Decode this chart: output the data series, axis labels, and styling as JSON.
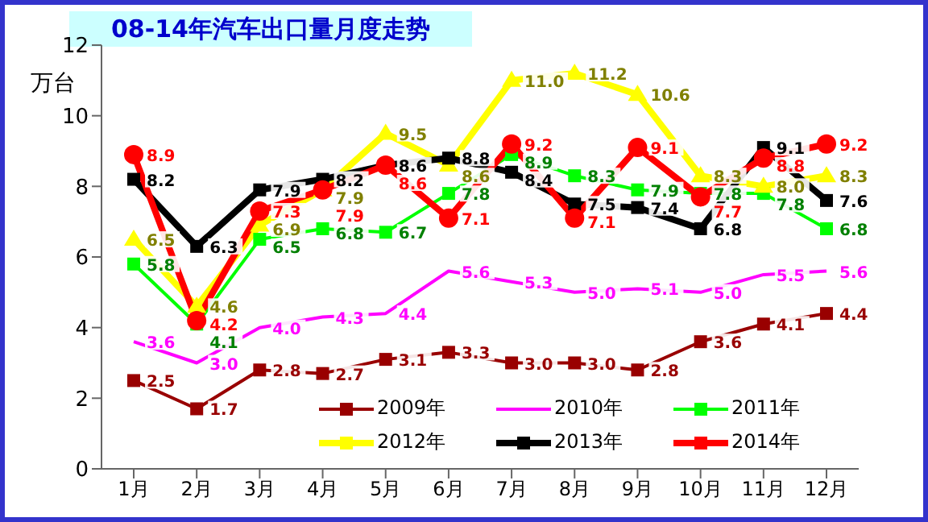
{
  "chart_data": {
    "type": "line",
    "title": "08-14年汽车出口量月度走势",
    "ylabel": "万台",
    "categories": [
      "1月",
      "2月",
      "3月",
      "4月",
      "5月",
      "6月",
      "7月",
      "8月",
      "9月",
      "10月",
      "11月",
      "12月"
    ],
    "series": [
      {
        "name": "2009年",
        "color": "#990000",
        "marker": "square",
        "values": [
          2.5,
          1.7,
          2.8,
          2.7,
          3.1,
          3.3,
          3.0,
          3.0,
          2.8,
          3.6,
          4.1,
          4.4
        ],
        "value_labels": [
          "2.5",
          "1.7",
          "2.8",
          "2.7",
          "3.1",
          "3.3",
          "3.0",
          "3.0",
          "2.8",
          "3.6",
          "4.1",
          "4.4"
        ]
      },
      {
        "name": "2010年",
        "color": "#ff00ff",
        "marker": "none",
        "values": [
          3.6,
          3.0,
          4.0,
          4.3,
          4.4,
          5.6,
          5.3,
          5.0,
          5.1,
          5.0,
          5.5,
          5.6
        ],
        "value_labels": [
          "3.6",
          "3.0",
          "4.0",
          "4.3",
          "4.4",
          "5.6",
          "5.3",
          "5.0",
          "5.1",
          "5.0",
          "5.5",
          "5.6"
        ]
      },
      {
        "name": "2011年",
        "color": "#00ff00",
        "marker": "square",
        "values": [
          5.8,
          4.1,
          6.5,
          6.8,
          6.7,
          7.8,
          8.9,
          8.3,
          7.9,
          7.8,
          7.8,
          6.8
        ],
        "value_labels": [
          "5.8",
          "4.1",
          "6.5",
          "6.8",
          "6.7",
          "7.8",
          "8.9",
          "8.3",
          "7.9",
          "7.8",
          "7.8",
          "6.8"
        ]
      },
      {
        "name": "2012年",
        "color": "#ffff00",
        "marker": "triangle",
        "values": [
          6.5,
          4.6,
          6.9,
          7.9,
          9.5,
          8.6,
          11.0,
          11.2,
          10.6,
          8.3,
          8.0,
          8.3
        ],
        "value_labels": [
          "6.5",
          "4.6",
          "6.9",
          "7.9",
          "9.5",
          "8.6",
          "11.0",
          "11.2",
          "10.6",
          "8.3",
          "8.0",
          "8.3"
        ]
      },
      {
        "name": "2013年",
        "color": "#000000",
        "marker": "square",
        "values": [
          8.2,
          6.3,
          7.9,
          8.2,
          8.6,
          8.8,
          8.4,
          7.5,
          7.4,
          6.8,
          9.1,
          7.6
        ],
        "value_labels": [
          "8.2",
          "6.3",
          "7.9",
          "8.2",
          "8.6",
          "8.8",
          "8.4",
          "7.5",
          "7.4",
          "6.8",
          "9.1",
          "7.6"
        ]
      },
      {
        "name": "2014年",
        "color": "#ff0000",
        "marker": "circle",
        "values": [
          8.9,
          4.2,
          7.3,
          7.9,
          8.6,
          7.1,
          9.2,
          7.1,
          9.1,
          7.7,
          8.8,
          9.2
        ],
        "value_labels": [
          "8.9",
          "4.2",
          "7.3",
          "7.9",
          "8.6",
          "7.1",
          "9.2",
          "7.1",
          "9.1",
          "7.7",
          "8.8",
          "9.2"
        ]
      }
    ],
    "ylim": [
      0,
      12
    ],
    "yticks": [
      0,
      2,
      4,
      6,
      8,
      10,
      12
    ],
    "grid": false,
    "legend": "bottom"
  }
}
